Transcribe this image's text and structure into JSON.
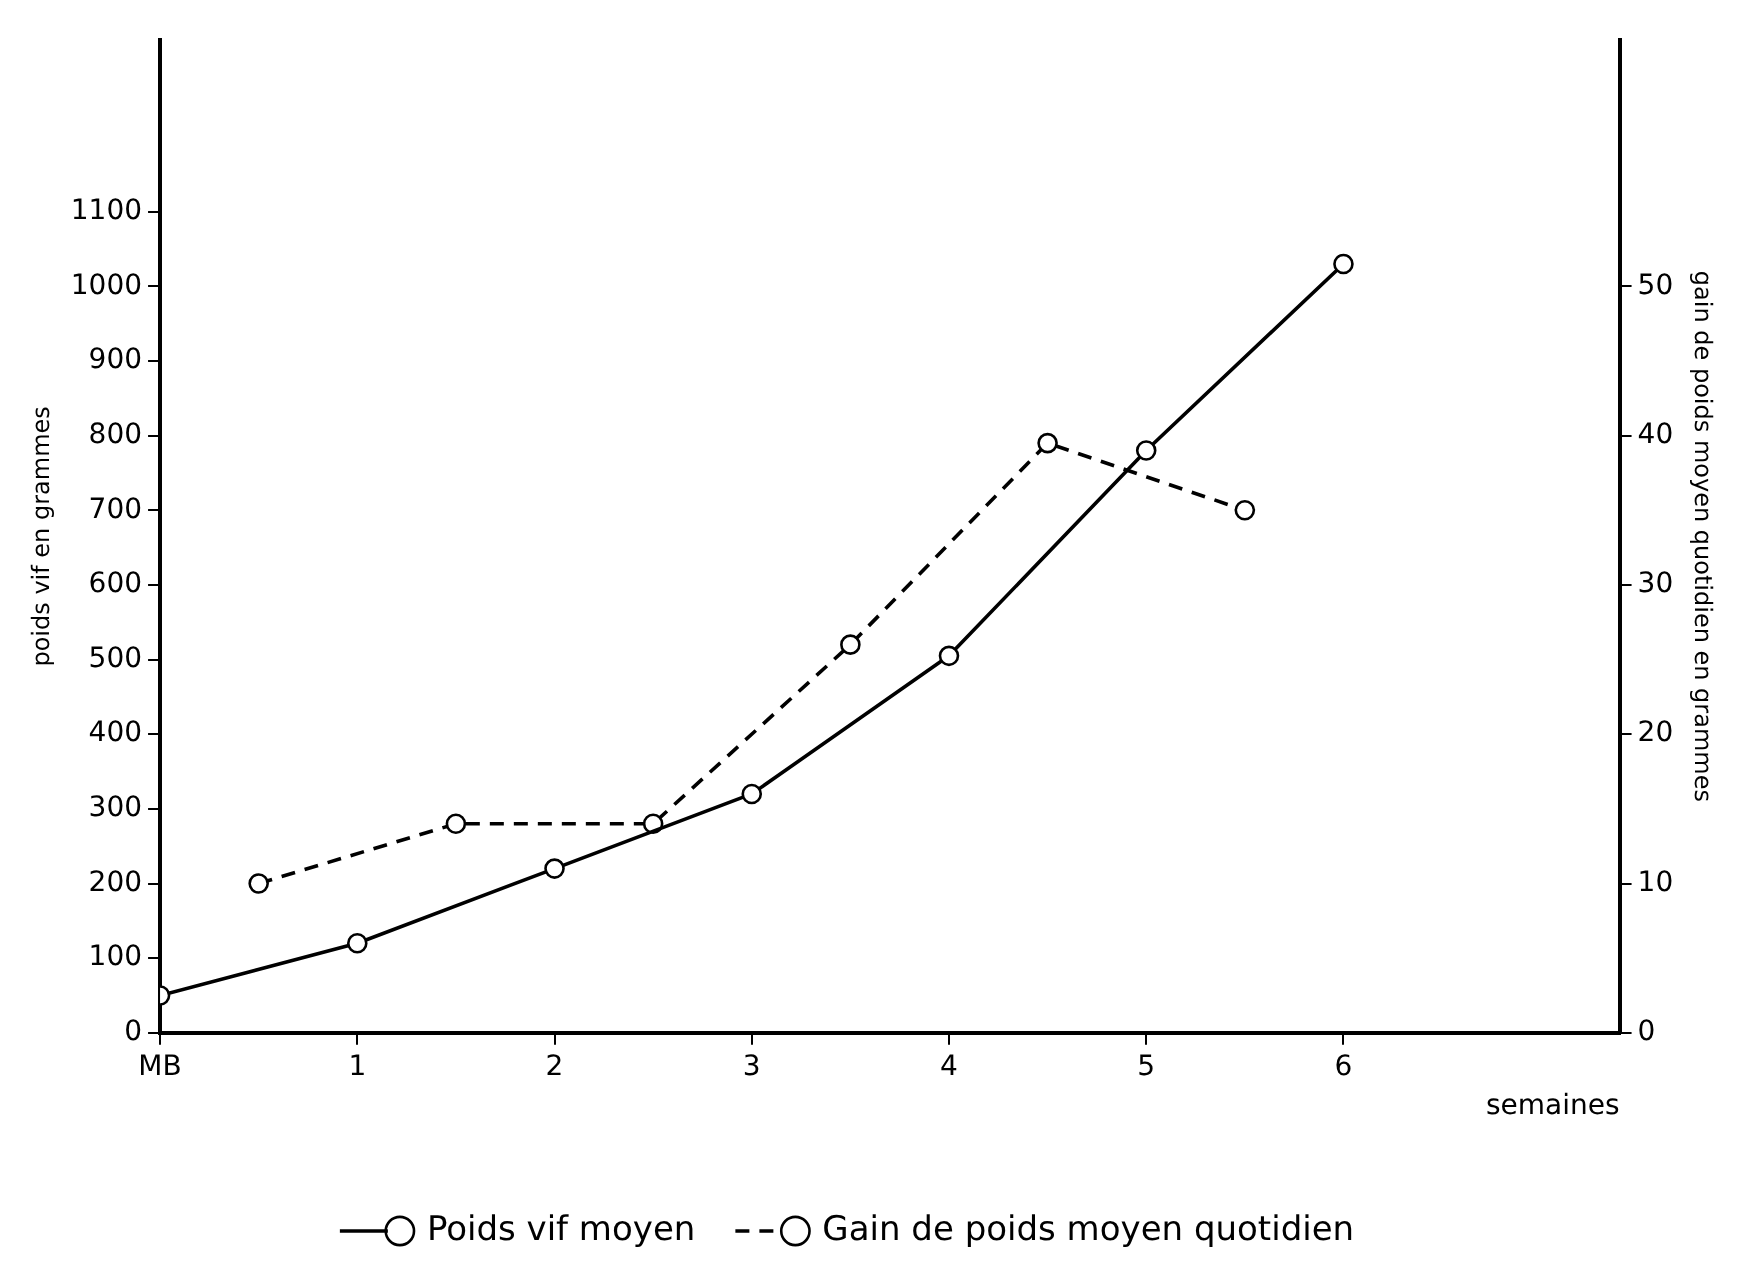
{
  "chart_data": {
    "type": "line",
    "xlabel": "semaines",
    "ylabel": "poids vif en grammes",
    "y2label": "gain de poids moyen quotidien en grammes",
    "xlim": [
      0,
      7.4
    ],
    "xticks": [
      {
        "value": 0,
        "label": "MB"
      },
      1,
      2,
      3,
      4,
      5,
      6
    ],
    "ylim": [
      0,
      1330
    ],
    "yticks": [
      0,
      100,
      200,
      300,
      400,
      500,
      600,
      700,
      800,
      900,
      1000,
      1100
    ],
    "y2lim": [
      0,
      66.5
    ],
    "y2ticks": [
      0,
      10,
      20,
      30,
      40,
      50
    ],
    "series": [
      {
        "name": "Poids vif moyen",
        "color": "#000000",
        "line_style": "solid",
        "x": [
          0,
          1,
          2,
          3,
          4,
          5,
          6
        ],
        "values": [
          50,
          120,
          220,
          320,
          505,
          780,
          1030
        ]
      },
      {
        "name": "Gain de poids moyen quotidien",
        "color": "#000000",
        "line_style": "dashed",
        "axis": "y2",
        "x": [
          0.5,
          1.5,
          2.5,
          3.5,
          4.5,
          5.5
        ],
        "values": [
          10,
          14,
          14,
          26,
          39.5,
          35
        ]
      }
    ],
    "marker": "circle",
    "grid": false,
    "legend": "bottom"
  }
}
